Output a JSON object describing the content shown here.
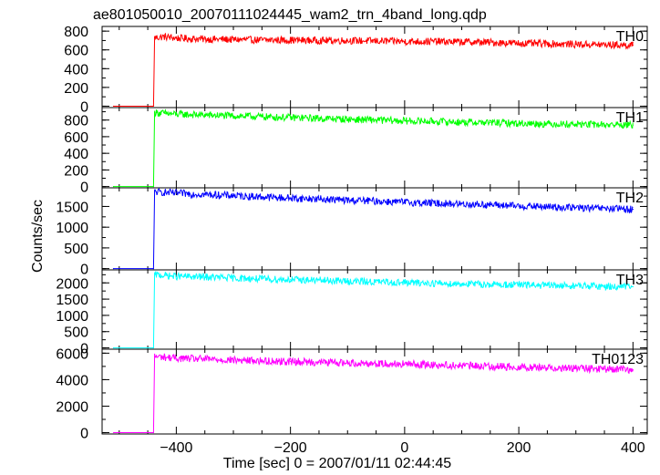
{
  "chart_data": {
    "type": "line",
    "title": "ae801050010_20070111024445_wam2_trn_4band_long.qdp",
    "xlabel": "Time [sec] 0 = 2007/01/11 02:44:45",
    "ylabel": "Counts/sec",
    "xlim": [
      -530,
      425
    ],
    "xticks": [
      -400,
      -200,
      0,
      200,
      400
    ],
    "xticklabels": [
      "−400",
      "−200",
      "0",
      "200",
      "400"
    ],
    "legend": "none",
    "grid": false,
    "panels": [
      {
        "name": "TH0",
        "color": "#ff0000",
        "ylim": [
          -15,
          850
        ],
        "yticks": [
          0,
          200,
          400,
          600,
          800
        ],
        "yticklabels": [
          "0",
          "200",
          "400",
          "600",
          "800"
        ],
        "x": [
          -510,
          -440,
          -438,
          -420,
          -400,
          -350,
          -300,
          -250,
          -200,
          -150,
          -100,
          -50,
          0,
          50,
          100,
          150,
          200,
          250,
          300,
          350,
          400
        ],
        "values": [
          0,
          0,
          730,
          740,
          725,
          715,
          710,
          705,
          705,
          700,
          700,
          695,
          690,
          690,
          685,
          680,
          670,
          665,
          660,
          655,
          650
        ]
      },
      {
        "name": "TH1",
        "color": "#00ff00",
        "ylim": [
          -15,
          950
        ],
        "yticks": [
          0,
          200,
          400,
          600,
          800
        ],
        "yticklabels": [
          "0",
          "200",
          "400",
          "600",
          "800"
        ],
        "x": [
          -510,
          -440,
          -438,
          -420,
          -400,
          -350,
          -300,
          -250,
          -200,
          -150,
          -100,
          -50,
          0,
          50,
          100,
          150,
          200,
          250,
          300,
          350,
          400
        ],
        "values": [
          0,
          0,
          890,
          880,
          870,
          860,
          850,
          840,
          830,
          820,
          810,
          800,
          790,
          785,
          775,
          770,
          760,
          755,
          750,
          745,
          740
        ]
      },
      {
        "name": "TH2",
        "color": "#0000ff",
        "ylim": [
          -30,
          1950
        ],
        "yticks": [
          0,
          500,
          1000,
          1500
        ],
        "yticklabels": [
          "0",
          "500",
          "1000",
          "1500"
        ],
        "x": [
          -510,
          -440,
          -438,
          -420,
          -400,
          -350,
          -300,
          -250,
          -200,
          -150,
          -100,
          -50,
          0,
          50,
          100,
          150,
          200,
          250,
          300,
          350,
          400
        ],
        "values": [
          0,
          0,
          1850,
          1840,
          1820,
          1790,
          1760,
          1730,
          1700,
          1680,
          1650,
          1630,
          1600,
          1580,
          1560,
          1540,
          1510,
          1490,
          1470,
          1450,
          1430
        ]
      },
      {
        "name": "TH3",
        "color": "#00ffff",
        "ylim": [
          -40,
          2400
        ],
        "yticks": [
          0,
          500,
          1000,
          1500,
          2000
        ],
        "yticklabels": [
          "0",
          "500",
          "1000",
          "1500",
          "2000"
        ],
        "x": [
          -510,
          -440,
          -438,
          -420,
          -400,
          -350,
          -300,
          -250,
          -200,
          -150,
          -100,
          -50,
          0,
          50,
          100,
          150,
          200,
          250,
          300,
          350,
          400
        ],
        "values": [
          0,
          0,
          2250,
          2230,
          2200,
          2180,
          2150,
          2120,
          2100,
          2080,
          2050,
          2030,
          2010,
          1990,
          1970,
          1950,
          1940,
          1920,
          1910,
          1890,
          1880
        ]
      },
      {
        "name": "TH0123",
        "color": "#ff00ff",
        "ylim": [
          -100,
          6300
        ],
        "yticks": [
          0,
          2000,
          4000,
          6000
        ],
        "yticklabels": [
          "0",
          "2000",
          "4000",
          "6000"
        ],
        "x": [
          -510,
          -440,
          -438,
          -420,
          -400,
          -350,
          -300,
          -250,
          -200,
          -150,
          -100,
          -50,
          0,
          50,
          100,
          150,
          200,
          250,
          300,
          350,
          400
        ],
        "values": [
          0,
          0,
          5750,
          5700,
          5620,
          5550,
          5480,
          5420,
          5370,
          5320,
          5270,
          5220,
          5170,
          5120,
          5060,
          5010,
          4960,
          4910,
          4860,
          4800,
          4750
        ]
      }
    ]
  }
}
